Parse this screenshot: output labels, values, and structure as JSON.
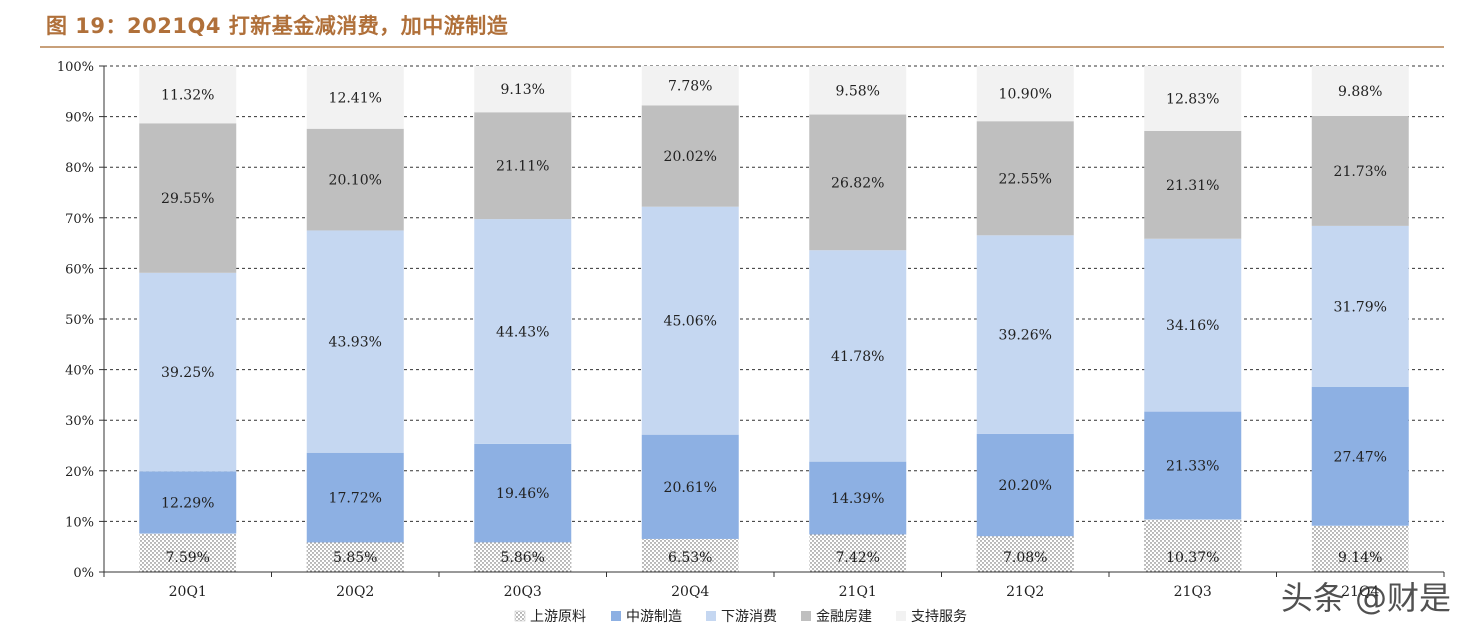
{
  "title": "图 19：2021Q4 打新基金减消费，加中游制造",
  "watermark": "头条 @财是",
  "chart_data": {
    "type": "bar",
    "stacked": true,
    "title": "",
    "xlabel": "",
    "ylabel": "",
    "ylim": [
      0,
      100
    ],
    "y_ticks": [
      "0%",
      "10%",
      "20%",
      "30%",
      "40%",
      "50%",
      "60%",
      "70%",
      "80%",
      "90%",
      "100%"
    ],
    "grid": true,
    "legend_position": "bottom",
    "categories": [
      "20Q1",
      "20Q2",
      "20Q3",
      "20Q4",
      "21Q1",
      "21Q2",
      "21Q3",
      "21Q4"
    ],
    "series": [
      {
        "name": "上游原料",
        "color": "#ffffff",
        "pattern": "dotted",
        "values": [
          7.59,
          5.85,
          5.86,
          6.53,
          7.42,
          7.08,
          10.37,
          9.14
        ],
        "labels": [
          "7.59%",
          "5.85%",
          "5.86%",
          "6.53%",
          "7.42%",
          "7.08%",
          "10.37%",
          "9.14%"
        ]
      },
      {
        "name": "中游制造",
        "color": "#8db0e3",
        "values": [
          12.29,
          17.72,
          19.46,
          20.61,
          14.39,
          20.2,
          21.33,
          27.47
        ],
        "labels": [
          "12.29%",
          "17.72%",
          "19.46%",
          "20.61%",
          "14.39%",
          "20.20%",
          "21.33%",
          "27.47%"
        ]
      },
      {
        "name": "下游消费",
        "color": "#c5d7f1",
        "values": [
          39.25,
          43.93,
          44.43,
          45.06,
          41.78,
          39.26,
          34.16,
          31.79
        ],
        "labels": [
          "39.25%",
          "43.93%",
          "44.43%",
          "45.06%",
          "41.78%",
          "39.26%",
          "34.16%",
          "31.79%"
        ]
      },
      {
        "name": "金融房建",
        "color": "#bfbfbf",
        "values": [
          29.55,
          20.1,
          21.11,
          20.02,
          26.82,
          22.55,
          21.31,
          21.73
        ],
        "labels": [
          "29.55%",
          "20.10%",
          "21.11%",
          "20.02%",
          "26.82%",
          "22.55%",
          "21.31%",
          "21.73%"
        ]
      },
      {
        "name": "支持服务",
        "color": "#f2f2f2",
        "values": [
          11.32,
          12.41,
          9.13,
          7.78,
          9.58,
          10.9,
          12.83,
          9.88
        ],
        "labels": [
          "11.32%",
          "12.41%",
          "9.13%",
          "7.78%",
          "9.58%",
          "10.90%",
          "12.83%",
          "9.88%"
        ]
      }
    ]
  }
}
